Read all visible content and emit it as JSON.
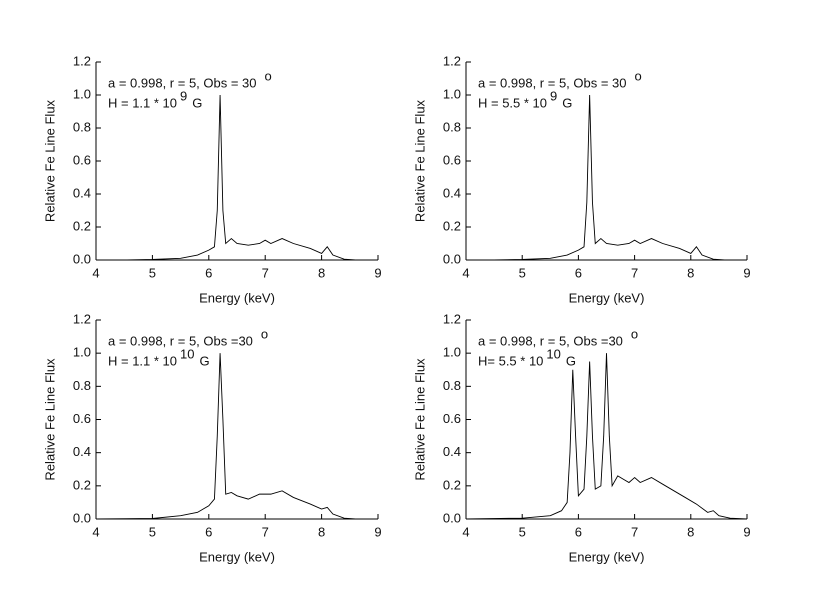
{
  "chart_data": [
    {
      "type": "line",
      "xlabel": "Energy (keV)",
      "ylabel": "Relative Fe Line Flux",
      "annotations": [
        {
          "text": "a = 0.998, r = 5, Obs = 30",
          "sup": "o"
        },
        {
          "text": "H = 1.1 * 10",
          "sup": "9",
          "suffix": "G"
        }
      ],
      "x": [
        4.0,
        4.5,
        5.0,
        5.5,
        5.8,
        6.0,
        6.1,
        6.15,
        6.2,
        6.25,
        6.3,
        6.4,
        6.5,
        6.7,
        6.9,
        7.0,
        7.1,
        7.3,
        7.5,
        7.8,
        8.0,
        8.1,
        8.2,
        8.4,
        8.6,
        9.0
      ],
      "series": [
        {
          "color": "#000000",
          "values": [
            0,
            0,
            0.003,
            0.01,
            0.03,
            0.06,
            0.08,
            0.3,
            1.0,
            0.3,
            0.1,
            0.13,
            0.1,
            0.09,
            0.1,
            0.12,
            0.1,
            0.13,
            0.1,
            0.07,
            0.04,
            0.08,
            0.03,
            0.005,
            0,
            0
          ]
        }
      ],
      "xlim": [
        4,
        9
      ],
      "ylim": [
        0,
        1.2
      ],
      "xticks": [
        4,
        5,
        6,
        7,
        8,
        9
      ],
      "yticks": [
        {
          "value": 0,
          "label": "0.0"
        },
        0.2,
        0.4,
        0.6,
        0.8,
        {
          "value": 1,
          "label": "1.0"
        },
        1.2
      ]
    },
    {
      "type": "line",
      "xlabel": "Energy (keV)",
      "ylabel": "Relative Fe Line Flux",
      "annotations": [
        {
          "text": "a = 0.998, r = 5, Obs = 30",
          "sup": "o"
        },
        {
          "text": "H = 5.5 * 10",
          "sup": "9",
          "suffix": "G"
        }
      ],
      "x": [
        4.0,
        4.5,
        5.0,
        5.5,
        5.8,
        6.0,
        6.1,
        6.15,
        6.2,
        6.25,
        6.3,
        6.4,
        6.5,
        6.7,
        6.9,
        7.0,
        7.1,
        7.3,
        7.5,
        7.8,
        8.0,
        8.1,
        8.2,
        8.4,
        8.6,
        9.0
      ],
      "series": [
        {
          "color": "#000000",
          "values": [
            0,
            0,
            0.003,
            0.01,
            0.03,
            0.06,
            0.08,
            0.35,
            1.0,
            0.35,
            0.1,
            0.13,
            0.1,
            0.09,
            0.1,
            0.12,
            0.1,
            0.13,
            0.1,
            0.07,
            0.04,
            0.08,
            0.03,
            0.005,
            0,
            0
          ]
        }
      ],
      "xlim": [
        4,
        9
      ],
      "ylim": [
        0,
        1.2
      ],
      "xticks": [
        4,
        5,
        6,
        7,
        8,
        9
      ],
      "yticks": [
        {
          "value": 0,
          "label": "0.0"
        },
        0.2,
        0.4,
        0.6,
        0.8,
        {
          "value": 1,
          "label": "1.0"
        },
        1.2
      ]
    },
    {
      "type": "line",
      "xlabel": "Energy (keV)",
      "ylabel": "Relative Fe Line Flux",
      "annotations": [
        {
          "text": "a = 0.998, r = 5, Obs =30",
          "sup": "o"
        },
        {
          "text": "H = 1.1 * 10",
          "sup": "10",
          "suffix": "G"
        }
      ],
      "x": [
        4.0,
        5.0,
        5.5,
        5.8,
        6.0,
        6.1,
        6.15,
        6.2,
        6.25,
        6.3,
        6.4,
        6.5,
        6.7,
        6.9,
        7.1,
        7.3,
        7.5,
        7.8,
        8.0,
        8.1,
        8.2,
        8.4,
        8.6,
        9.0
      ],
      "series": [
        {
          "color": "#000000",
          "values": [
            0,
            0.003,
            0.02,
            0.04,
            0.08,
            0.12,
            0.5,
            1.0,
            0.6,
            0.15,
            0.16,
            0.14,
            0.12,
            0.15,
            0.15,
            0.17,
            0.13,
            0.09,
            0.06,
            0.07,
            0.03,
            0.005,
            0,
            0
          ]
        }
      ],
      "xlim": [
        4,
        9
      ],
      "ylim": [
        0,
        1.2
      ],
      "xticks": [
        4,
        5,
        6,
        7,
        8,
        9
      ],
      "yticks": [
        {
          "value": 0,
          "label": "0.0"
        },
        0.2,
        0.4,
        0.6,
        0.8,
        {
          "value": 1,
          "label": "1.0"
        },
        1.2
      ]
    },
    {
      "type": "line",
      "xlabel": "Energy (keV)",
      "ylabel": "Relative Fe Line Flux",
      "annotations": [
        {
          "text": "a = 0.998, r = 5, Obs =30",
          "sup": "o"
        },
        {
          "text": "H= 5.5 * 10",
          "sup": "10",
          "suffix": "G"
        }
      ],
      "x": [
        4.0,
        5.0,
        5.5,
        5.7,
        5.8,
        5.85,
        5.9,
        5.95,
        6.0,
        6.1,
        6.15,
        6.2,
        6.25,
        6.3,
        6.4,
        6.45,
        6.5,
        6.55,
        6.6,
        6.7,
        6.8,
        6.9,
        7.0,
        7.1,
        7.3,
        7.5,
        7.7,
        7.9,
        8.1,
        8.3,
        8.4,
        8.5,
        8.7,
        9.0
      ],
      "series": [
        {
          "color": "#000000",
          "values": [
            0,
            0.005,
            0.02,
            0.05,
            0.1,
            0.4,
            0.9,
            0.5,
            0.14,
            0.18,
            0.5,
            0.95,
            0.5,
            0.18,
            0.2,
            0.5,
            1.0,
            0.5,
            0.2,
            0.26,
            0.24,
            0.22,
            0.25,
            0.22,
            0.25,
            0.21,
            0.17,
            0.13,
            0.09,
            0.04,
            0.05,
            0.02,
            0.005,
            0
          ]
        }
      ],
      "xlim": [
        4,
        9
      ],
      "ylim": [
        0,
        1.2
      ],
      "xticks": [
        4,
        5,
        6,
        7,
        8,
        9
      ],
      "yticks": [
        {
          "value": 0,
          "label": "0.0"
        },
        0.2,
        0.4,
        0.6,
        0.8,
        {
          "value": 1,
          "label": "1.0"
        },
        1.2
      ]
    }
  ]
}
